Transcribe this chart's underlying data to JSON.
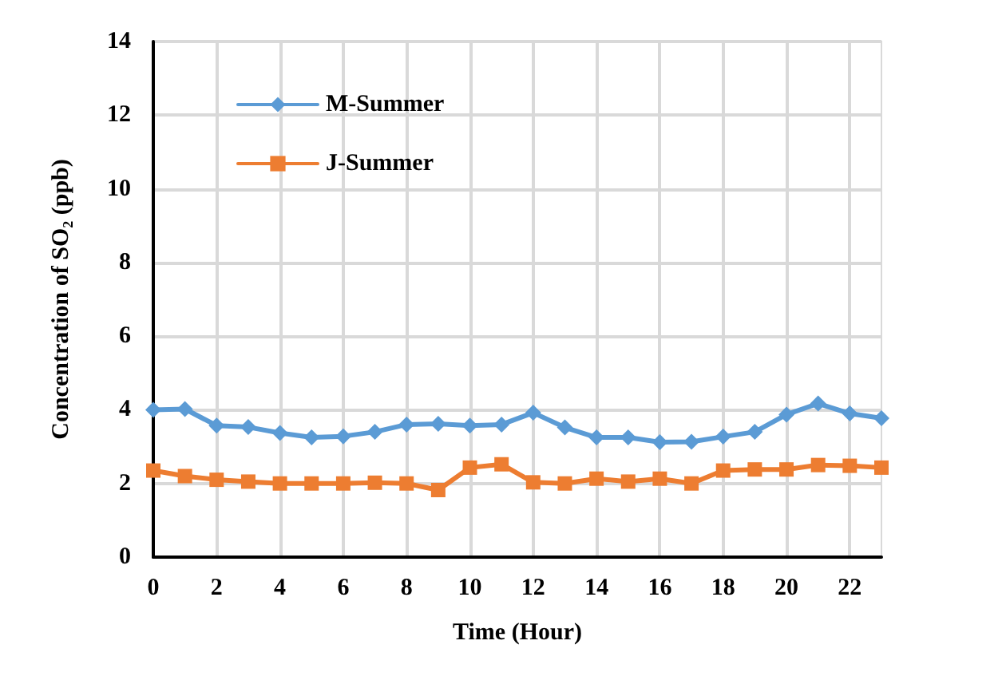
{
  "chart_data": {
    "type": "line",
    "xlabel": "Time (Hour)",
    "ylabel": "Concentration of SO₂ (ppb)",
    "x": [
      0,
      1,
      2,
      3,
      4,
      5,
      6,
      7,
      8,
      9,
      10,
      11,
      12,
      13,
      14,
      15,
      16,
      17,
      18,
      19,
      20,
      21,
      22,
      23
    ],
    "series": [
      {
        "name": "M-Summer",
        "color": "#5b9bd5",
        "marker": "diamond",
        "values": [
          4.0,
          4.02,
          3.57,
          3.53,
          3.37,
          3.25,
          3.28,
          3.4,
          3.6,
          3.62,
          3.57,
          3.6,
          3.92,
          3.52,
          3.25,
          3.25,
          3.12,
          3.13,
          3.27,
          3.4,
          3.87,
          4.17,
          3.9,
          3.77
        ]
      },
      {
        "name": "J-Summer",
        "color": "#ed7d31",
        "marker": "square",
        "values": [
          2.35,
          2.2,
          2.1,
          2.05,
          2.0,
          2.0,
          2.0,
          2.02,
          2.0,
          1.82,
          2.43,
          2.52,
          2.03,
          2.0,
          2.13,
          2.05,
          2.13,
          2.0,
          2.35,
          2.38,
          2.38,
          2.5,
          2.48,
          2.43
        ]
      }
    ],
    "xlim": [
      0,
      23
    ],
    "xticks": [
      0,
      2,
      4,
      6,
      8,
      10,
      12,
      14,
      16,
      18,
      20,
      22
    ],
    "ylim": [
      0,
      14
    ],
    "yticks": [
      0,
      2,
      4,
      6,
      8,
      10,
      12,
      14
    ],
    "grid": true,
    "legend": "top left",
    "line_style": "solid"
  }
}
